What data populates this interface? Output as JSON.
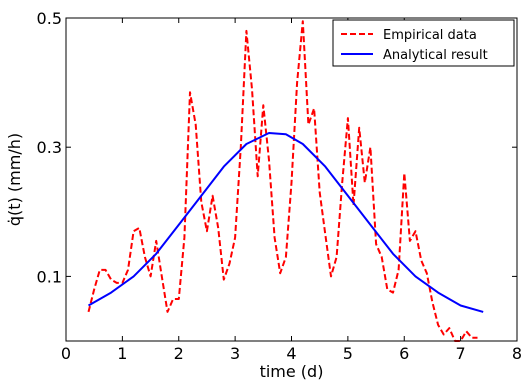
{
  "chart_data": {
    "type": "line",
    "xlabel": "time (d)",
    "ylabel": "q̇(t) (mm/h)",
    "xlim": [
      0,
      8
    ],
    "ylim": [
      0.0,
      0.5
    ],
    "xticks": [
      0,
      1,
      2,
      3,
      4,
      5,
      6,
      7,
      8
    ],
    "yticks": [
      0.1,
      0.3,
      0.5
    ],
    "x_tick_labels": [
      "0",
      "1",
      "2",
      "3",
      "4",
      "5",
      "6",
      "7",
      "8"
    ],
    "y_tick_labels": [
      "0.1",
      "0.3",
      "0.5"
    ],
    "grid": false,
    "legend_placement": "top-right",
    "series": [
      {
        "name": "Empirical data",
        "style": "dashed",
        "color": "#ff0000",
        "points": [
          [
            0.4,
            0.045
          ],
          [
            0.5,
            0.08
          ],
          [
            0.6,
            0.11
          ],
          [
            0.7,
            0.11
          ],
          [
            0.8,
            0.095
          ],
          [
            0.9,
            0.09
          ],
          [
            1.0,
            0.09
          ],
          [
            1.1,
            0.11
          ],
          [
            1.2,
            0.17
          ],
          [
            1.3,
            0.175
          ],
          [
            1.4,
            0.13
          ],
          [
            1.5,
            0.1
          ],
          [
            1.6,
            0.155
          ],
          [
            1.7,
            0.1
          ],
          [
            1.8,
            0.045
          ],
          [
            1.9,
            0.065
          ],
          [
            2.0,
            0.065
          ],
          [
            2.1,
            0.16
          ],
          [
            2.2,
            0.385
          ],
          [
            2.3,
            0.335
          ],
          [
            2.4,
            0.215
          ],
          [
            2.5,
            0.17
          ],
          [
            2.6,
            0.225
          ],
          [
            2.7,
            0.175
          ],
          [
            2.8,
            0.095
          ],
          [
            2.9,
            0.12
          ],
          [
            3.0,
            0.16
          ],
          [
            3.1,
            0.3
          ],
          [
            3.2,
            0.48
          ],
          [
            3.3,
            0.39
          ],
          [
            3.4,
            0.255
          ],
          [
            3.5,
            0.365
          ],
          [
            3.6,
            0.28
          ],
          [
            3.7,
            0.16
          ],
          [
            3.8,
            0.105
          ],
          [
            3.9,
            0.13
          ],
          [
            4.0,
            0.245
          ],
          [
            4.1,
            0.4
          ],
          [
            4.2,
            0.495
          ],
          [
            4.3,
            0.335
          ],
          [
            4.4,
            0.36
          ],
          [
            4.5,
            0.23
          ],
          [
            4.6,
            0.165
          ],
          [
            4.7,
            0.1
          ],
          [
            4.8,
            0.13
          ],
          [
            4.9,
            0.245
          ],
          [
            5.0,
            0.345
          ],
          [
            5.1,
            0.21
          ],
          [
            5.2,
            0.33
          ],
          [
            5.3,
            0.245
          ],
          [
            5.4,
            0.3
          ],
          [
            5.5,
            0.15
          ],
          [
            5.6,
            0.13
          ],
          [
            5.7,
            0.08
          ],
          [
            5.8,
            0.075
          ],
          [
            5.9,
            0.11
          ],
          [
            6.0,
            0.26
          ],
          [
            6.1,
            0.155
          ],
          [
            6.2,
            0.17
          ],
          [
            6.3,
            0.125
          ],
          [
            6.4,
            0.105
          ],
          [
            6.5,
            0.06
          ],
          [
            6.6,
            0.025
          ],
          [
            6.7,
            0.01
          ],
          [
            6.8,
            0.02
          ],
          [
            6.9,
            0.0
          ],
          [
            7.0,
            0.0
          ],
          [
            7.1,
            0.015
          ],
          [
            7.2,
            0.005
          ],
          [
            7.3,
            0.005
          ]
        ]
      },
      {
        "name": "Analytical result",
        "style": "solid",
        "color": "#0000ff",
        "points": [
          [
            0.4,
            0.055
          ],
          [
            0.8,
            0.075
          ],
          [
            1.2,
            0.1
          ],
          [
            1.6,
            0.135
          ],
          [
            2.0,
            0.18
          ],
          [
            2.4,
            0.225
          ],
          [
            2.8,
            0.27
          ],
          [
            3.2,
            0.305
          ],
          [
            3.6,
            0.322
          ],
          [
            3.9,
            0.32
          ],
          [
            4.2,
            0.305
          ],
          [
            4.6,
            0.27
          ],
          [
            5.0,
            0.225
          ],
          [
            5.4,
            0.18
          ],
          [
            5.8,
            0.135
          ],
          [
            6.2,
            0.1
          ],
          [
            6.6,
            0.075
          ],
          [
            7.0,
            0.055
          ],
          [
            7.4,
            0.045
          ]
        ]
      }
    ]
  }
}
